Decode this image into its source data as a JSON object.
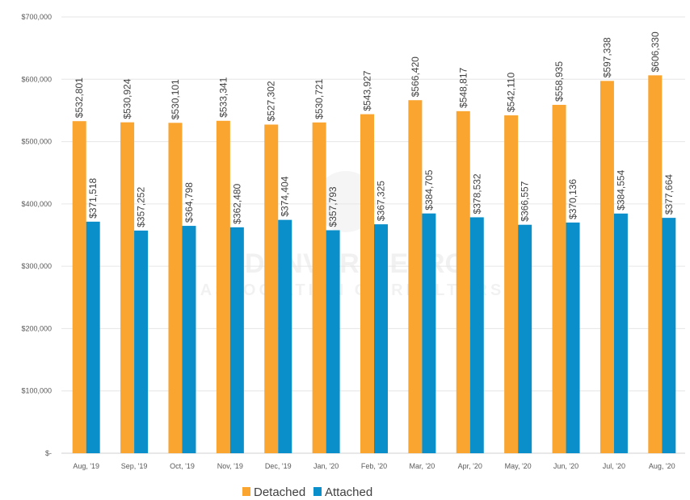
{
  "chart_data": {
    "type": "bar",
    "title": "",
    "xlabel": "",
    "ylabel": "",
    "ylim": [
      0,
      700000
    ],
    "yticks": [
      0,
      100000,
      200000,
      300000,
      400000,
      500000,
      600000,
      700000
    ],
    "ytick_labels": [
      "$-",
      "$100,000",
      "$200,000",
      "$300,000",
      "$400,000",
      "$500,000",
      "$600,000",
      "$700,000"
    ],
    "grid": true,
    "legend_position": "bottom",
    "categories": [
      "Aug, '19",
      "Sep, '19",
      "Oct, '19",
      "Nov, '19",
      "Dec, '19",
      "Jan, '20",
      "Feb, '20",
      "Mar, '20",
      "Apr, '20",
      "May, '20",
      "Jun, '20",
      "Jul, '20",
      "Aug, '20"
    ],
    "series": [
      {
        "name": "Detached",
        "color": "#F9A530",
        "values": [
          532801,
          530924,
          530101,
          533341,
          527302,
          530721,
          543927,
          566420,
          548817,
          542110,
          558935,
          597338,
          606330
        ],
        "labels": [
          "$532,801",
          "$530,924",
          "$530,101",
          "$533,341",
          "$527,302",
          "$530,721",
          "$543,927",
          "$566,420",
          "$548,817",
          "$542,110",
          "$558,935",
          "$597,338",
          "$606,330"
        ]
      },
      {
        "name": "Attached",
        "color": "#0B8FCB",
        "values": [
          371518,
          357252,
          364798,
          362480,
          374404,
          357793,
          367325,
          384705,
          378532,
          366557,
          370136,
          384554,
          377664
        ],
        "labels": [
          "$371,518",
          "$357,252",
          "$364,798",
          "$362,480",
          "$374,404",
          "$357,793",
          "$367,325",
          "$384,705",
          "$378,532",
          "$366,557",
          "$370,136",
          "$384,554",
          "$377,664"
        ]
      }
    ]
  },
  "watermark": {
    "line1": "DENVER METRO",
    "line2": "ASSOCIATION OF REALTORS"
  }
}
